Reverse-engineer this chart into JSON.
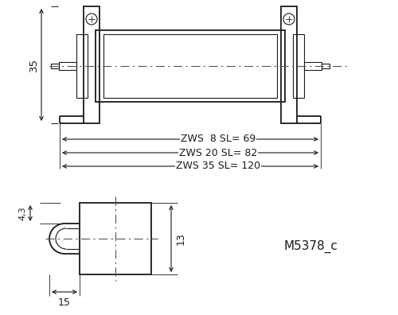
{
  "bg_color": "#ffffff",
  "line_color": "#1a1a1a",
  "fig_width": 5.0,
  "fig_height": 3.96,
  "dpi": 100,
  "dim_lines": [
    "ZWS  8 SL= 69",
    "ZWS 20 SL= 82",
    "ZWS 35 SL= 120"
  ],
  "model_label": "M5378_c",
  "dim_35": "35",
  "dim_43": "4,3",
  "dim_13": "13",
  "dim_15": "15"
}
